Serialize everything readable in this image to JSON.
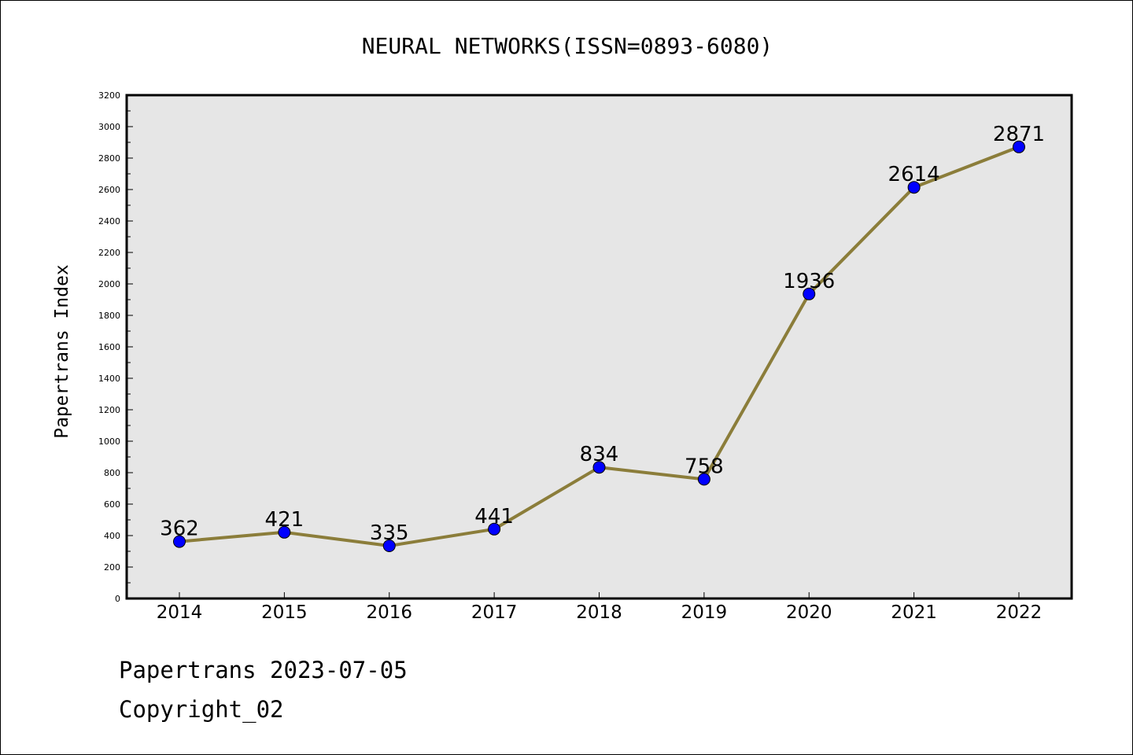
{
  "chart_data": {
    "type": "line",
    "title": "NEURAL NETWORKS(ISSN=0893-6080)",
    "xlabel": "",
    "ylabel": "Papertrans Index",
    "categories": [
      "2014",
      "2015",
      "2016",
      "2017",
      "2018",
      "2019",
      "2020",
      "2021",
      "2022"
    ],
    "values": [
      362,
      421,
      335,
      441,
      834,
      758,
      1936,
      2614,
      2871
    ],
    "data_labels": [
      "362",
      "421",
      "335",
      "441",
      "834",
      "758",
      "1936",
      "2614",
      "2871"
    ],
    "ylim": [
      0,
      3200
    ],
    "yticks": [
      0,
      200,
      400,
      600,
      800,
      1000,
      1200,
      1400,
      1600,
      1800,
      2000,
      2200,
      2400,
      2600,
      2800,
      3000,
      3200
    ],
    "grid": false,
    "legend": "none",
    "colors": {
      "line": "#8B7D3A",
      "marker": "#0000FF",
      "plot_background": "#E6E6E6"
    }
  },
  "footer": {
    "date_line": "Papertrans 2023-07-05",
    "copyright_line": "Copyright_02"
  }
}
